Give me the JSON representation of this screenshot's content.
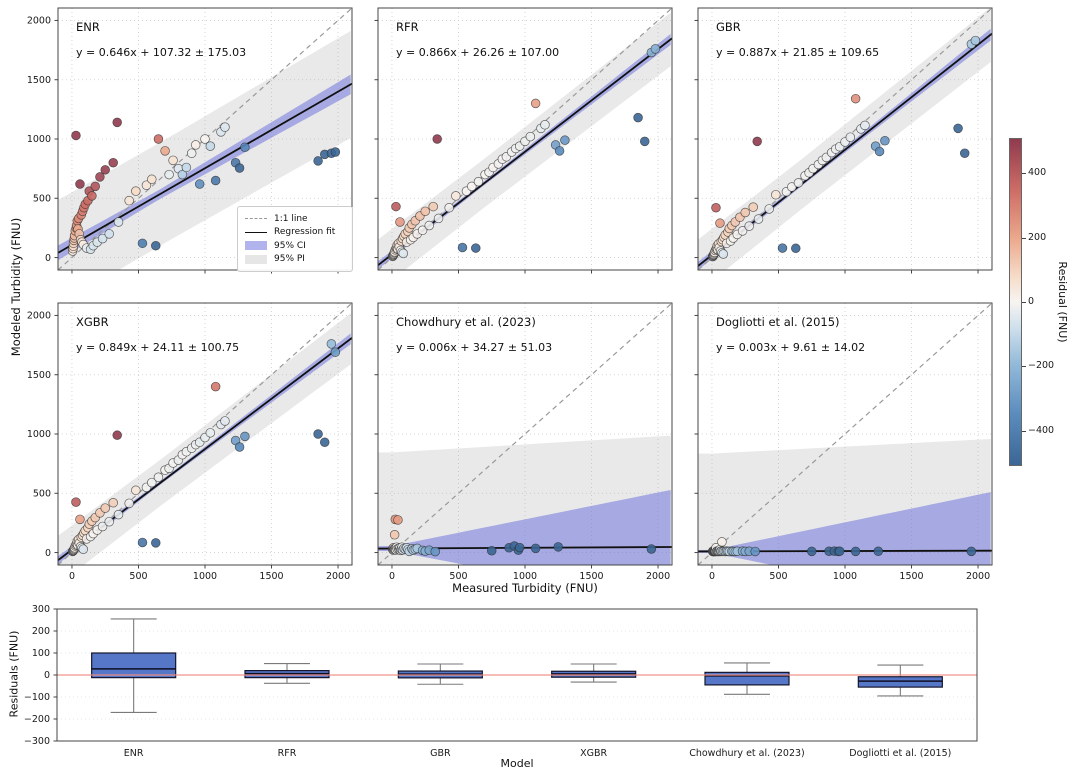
{
  "colors": {
    "background": "#ffffff",
    "spine": "#444444",
    "grid": "#cdcdcd",
    "tick_label": "#1a1a1a",
    "identity_line": "#999999",
    "regression_line": "#111111",
    "ci_fill": "#6f74dd",
    "pi_fill": "#999999",
    "marker_edge": "#2f2f2f",
    "box_fill": "#4d6fc4",
    "box_edge": "#15152d",
    "median_line": "#0f0f23",
    "whisker": "#7a7a7a",
    "zero_line": "#f08e86"
  },
  "chart_data": {
    "scatter_grid": {
      "type": "scatter",
      "x_label": "Measured Turbidity (FNU)",
      "y_label": "Modeled Turbidity (FNU)",
      "x_ticks": [
        0,
        500,
        1000,
        1500,
        2000
      ],
      "y_ticks": [
        0,
        500,
        1000,
        1500,
        2000
      ],
      "axis_range": [
        -105,
        2105
      ],
      "legend": {
        "items": [
          {
            "label": "1:1 line",
            "type": "dashed-line"
          },
          {
            "label": "Regression fit",
            "type": "solid-line"
          },
          {
            "label": "95% CI",
            "type": "ci-patch"
          },
          {
            "label": "95% PI",
            "type": "pi-patch"
          }
        ]
      },
      "colorbar": {
        "label": "Residual (FNU)",
        "ticks": [
          400,
          200,
          0,
          -200,
          -400
        ],
        "vmin": -510,
        "vmax": 510,
        "stops": [
          [
            -510,
            "#3b6695"
          ],
          [
            -350,
            "#5b8cbe"
          ],
          [
            -200,
            "#90b8d8"
          ],
          [
            -80,
            "#cfe0ec"
          ],
          [
            0,
            "#f7f4f1"
          ],
          [
            80,
            "#f6dcc8"
          ],
          [
            200,
            "#eba88c"
          ],
          [
            350,
            "#cd6d66"
          ],
          [
            510,
            "#903a4e"
          ]
        ]
      },
      "panels": [
        {
          "key": "enr",
          "name": "ENR",
          "equation": "y = 0.646x + 107.32 ± 175.03",
          "slope": 0.646,
          "intercept": 107.32,
          "ci": {
            "mode": "flare",
            "base": 40,
            "k": 0.03,
            "center": 650
          },
          "pi": {
            "mode": "flare",
            "base": 435,
            "k": 0.012,
            "center": 700
          }
        },
        {
          "key": "rfr",
          "name": "RFR",
          "equation": "y = 0.866x + 26.26 ± 107.00",
          "slope": 0.866,
          "intercept": 26.26,
          "ci": {
            "mode": "flare",
            "base": 16,
            "k": 0.022,
            "center": 700
          },
          "pi": {
            "mode": "flare",
            "base": 205,
            "k": 0.015,
            "center": 700
          }
        },
        {
          "key": "gbr",
          "name": "GBR",
          "equation": "y = 0.887x + 21.85 ± 109.65",
          "slope": 0.887,
          "intercept": 21.85,
          "ci": {
            "mode": "flare",
            "base": 16,
            "k": 0.024,
            "center": 700
          },
          "pi": {
            "mode": "flare",
            "base": 210,
            "k": 0.015,
            "center": 700
          }
        },
        {
          "key": "xgbr",
          "name": "XGBR",
          "equation": "y = 0.849x + 24.11 ± 100.75",
          "slope": 0.849,
          "intercept": 24.11,
          "ci": {
            "mode": "flare",
            "base": 15,
            "k": 0.022,
            "center": 700
          },
          "pi": {
            "mode": "flare",
            "base": 195,
            "k": 0.015,
            "center": 700
          }
        },
        {
          "key": "chow",
          "name": "Chowdhury et al. (2023)",
          "equation": "y = 0.006x + 34.27 ± 51.03",
          "slope": 0.006,
          "intercept": 34.27,
          "ci": {
            "mode": "wedge",
            "base": 20,
            "k": 0.22
          },
          "pi": {
            "mode": "wedge",
            "base": 810,
            "k": 0.062
          }
        },
        {
          "key": "dog",
          "name": "Dogliotti et al. (2015)",
          "equation": "y = 0.003x + 9.61 ± 14.02",
          "slope": 0.003,
          "intercept": 9.61,
          "ci": {
            "mode": "wedge",
            "base": 12,
            "k": 0.23
          },
          "pi": {
            "mode": "wedge",
            "base": 825,
            "k": 0.056
          }
        }
      ],
      "ml_points_columns": [
        "measured",
        "enr",
        "rfr",
        "gbr",
        "xgbr"
      ],
      "ml_points": [
        [
          5,
          55,
          10,
          8,
          10
        ],
        [
          8,
          75,
          15,
          12,
          14
        ],
        [
          10,
          95,
          20,
          18,
          16
        ],
        [
          12,
          120,
          26,
          22,
          20
        ],
        [
          15,
          145,
          32,
          28,
          26
        ],
        [
          18,
          165,
          40,
          36,
          33
        ],
        [
          20,
          185,
          48,
          44,
          40
        ],
        [
          25,
          225,
          65,
          60,
          55
        ],
        [
          30,
          1030,
          430,
          420,
          425
        ],
        [
          32,
          250,
          75,
          70,
          64
        ],
        [
          35,
          270,
          85,
          80,
          75
        ],
        [
          40,
          310,
          105,
          100,
          95
        ],
        [
          45,
          240,
          70,
          65,
          60
        ],
        [
          50,
          330,
          120,
          115,
          110
        ],
        [
          55,
          200,
          90,
          85,
          80
        ],
        [
          60,
          620,
          300,
          290,
          280
        ],
        [
          65,
          150,
          60,
          55,
          50
        ],
        [
          70,
          360,
          140,
          135,
          130
        ],
        [
          75,
          130,
          45,
          40,
          38
        ],
        [
          80,
          390,
          160,
          150,
          145
        ],
        [
          85,
          110,
          35,
          30,
          28
        ],
        [
          90,
          420,
          180,
          170,
          165
        ],
        [
          100,
          450,
          200,
          190,
          185
        ],
        [
          110,
          80,
          130,
          120,
          115
        ],
        [
          120,
          480,
          220,
          215,
          210
        ],
        [
          130,
          560,
          250,
          245,
          240
        ],
        [
          140,
          70,
          150,
          140,
          135
        ],
        [
          150,
          520,
          280,
          270,
          265
        ],
        [
          160,
          100,
          170,
          165,
          160
        ],
        [
          175,
          600,
          310,
          300,
          295
        ],
        [
          190,
          130,
          200,
          195,
          190
        ],
        [
          210,
          680,
          350,
          340,
          335
        ],
        [
          230,
          160,
          230,
          225,
          220
        ],
        [
          250,
          740,
          390,
          380,
          375
        ],
        [
          280,
          200,
          270,
          265,
          260
        ],
        [
          310,
          800,
          430,
          425,
          420
        ],
        [
          340,
          1140,
          1000,
          980,
          990
        ],
        [
          350,
          300,
          330,
          325,
          320
        ],
        [
          430,
          480,
          420,
          410,
          415
        ],
        [
          480,
          560,
          520,
          530,
          525
        ],
        [
          530,
          120,
          85,
          80,
          85
        ],
        [
          560,
          610,
          560,
          555,
          550
        ],
        [
          600,
          660,
          600,
          595,
          590
        ],
        [
          630,
          100,
          80,
          78,
          82
        ],
        [
          650,
          1000,
          640,
          630,
          635
        ],
        [
          700,
          900,
          700,
          690,
          695
        ],
        [
          730,
          700,
          720,
          715,
          710
        ],
        [
          760,
          820,
          760,
          750,
          755
        ],
        [
          800,
          750,
          790,
          785,
          780
        ],
        [
          830,
          700,
          830,
          820,
          825
        ],
        [
          860,
          760,
          850,
          845,
          850
        ],
        [
          900,
          880,
          890,
          885,
          880
        ],
        [
          930,
          950,
          920,
          915,
          910
        ],
        [
          960,
          620,
          940,
          935,
          930
        ],
        [
          1000,
          1000,
          980,
          975,
          970
        ],
        [
          1040,
          940,
          1020,
          1015,
          1010
        ],
        [
          1080,
          650,
          1300,
          1340,
          1400
        ],
        [
          1120,
          1060,
          1090,
          1085,
          1080
        ],
        [
          1150,
          1100,
          1120,
          1115,
          1110
        ],
        [
          1230,
          800,
          950,
          940,
          945
        ],
        [
          1260,
          755,
          900,
          895,
          890
        ],
        [
          1300,
          930,
          990,
          985,
          980
        ],
        [
          1850,
          815,
          1180,
          1090,
          1000
        ],
        [
          1900,
          870,
          980,
          880,
          930
        ],
        [
          1950,
          880,
          1730,
          1800,
          1760
        ],
        [
          1980,
          890,
          1760,
          1830,
          1690
        ]
      ],
      "chow_points": [
        [
          5,
          28
        ],
        [
          8,
          35
        ],
        [
          10,
          20
        ],
        [
          12,
          40
        ],
        [
          15,
          25
        ],
        [
          18,
          32
        ],
        [
          20,
          150
        ],
        [
          22,
          28
        ],
        [
          25,
          280
        ],
        [
          28,
          38
        ],
        [
          30,
          22
        ],
        [
          35,
          45
        ],
        [
          40,
          30
        ],
        [
          45,
          275
        ],
        [
          50,
          35
        ],
        [
          55,
          25
        ],
        [
          60,
          40
        ],
        [
          65,
          18
        ],
        [
          70,
          30
        ],
        [
          75,
          45
        ],
        [
          80,
          22
        ],
        [
          90,
          35
        ],
        [
          100,
          28
        ],
        [
          110,
          40
        ],
        [
          120,
          25
        ],
        [
          130,
          10
        ],
        [
          150,
          32
        ],
        [
          160,
          20
        ],
        [
          175,
          28
        ],
        [
          190,
          35
        ],
        [
          230,
          18
        ],
        [
          250,
          12
        ],
        [
          280,
          20
        ],
        [
          325,
          8
        ],
        [
          750,
          15
        ],
        [
          880,
          40
        ],
        [
          920,
          55
        ],
        [
          950,
          20
        ],
        [
          960,
          42
        ],
        [
          1080,
          35
        ],
        [
          1250,
          48
        ],
        [
          1950,
          30
        ]
      ],
      "dog_points": [
        [
          5,
          10
        ],
        [
          8,
          12
        ],
        [
          10,
          8
        ],
        [
          12,
          14
        ],
        [
          15,
          9
        ],
        [
          18,
          11
        ],
        [
          20,
          10
        ],
        [
          22,
          13
        ],
        [
          25,
          9
        ],
        [
          28,
          12
        ],
        [
          30,
          40
        ],
        [
          35,
          10
        ],
        [
          40,
          12
        ],
        [
          45,
          9
        ],
        [
          50,
          11
        ],
        [
          55,
          10
        ],
        [
          60,
          25
        ],
        [
          65,
          10
        ],
        [
          70,
          12
        ],
        [
          75,
          90
        ],
        [
          80,
          10
        ],
        [
          90,
          11
        ],
        [
          100,
          9
        ],
        [
          110,
          12
        ],
        [
          120,
          10
        ],
        [
          130,
          9
        ],
        [
          150,
          11
        ],
        [
          160,
          10
        ],
        [
          175,
          9
        ],
        [
          190,
          11
        ],
        [
          230,
          12
        ],
        [
          250,
          10
        ],
        [
          280,
          11
        ],
        [
          325,
          9
        ],
        [
          750,
          10
        ],
        [
          880,
          11
        ],
        [
          920,
          12
        ],
        [
          950,
          10
        ],
        [
          960,
          11
        ],
        [
          1080,
          10
        ],
        [
          1250,
          11
        ],
        [
          1950,
          10
        ]
      ]
    },
    "boxplot": {
      "type": "box",
      "x_label": "Model",
      "y_label": "Residuals (FNU)",
      "y_ticks": [
        300,
        200,
        100,
        0,
        -100,
        -200,
        -300
      ],
      "ylim": [
        -300,
        300
      ],
      "zero_line": 0,
      "boxes": [
        {
          "label": "ENR",
          "whisker_low": -170,
          "q1": -12,
          "median": 28,
          "q3": 100,
          "whisker_high": 255
        },
        {
          "label": "RFR",
          "whisker_low": -38,
          "q1": -12,
          "median": 6,
          "q3": 20,
          "whisker_high": 52
        },
        {
          "label": "GBR",
          "whisker_low": -42,
          "q1": -13,
          "median": 4,
          "q3": 18,
          "whisker_high": 50
        },
        {
          "label": "XGBR",
          "whisker_low": -32,
          "q1": -10,
          "median": 5,
          "q3": 17,
          "whisker_high": 50
        },
        {
          "label": "Chowdhury et al. (2023)",
          "whisker_low": -88,
          "q1": -45,
          "median": -4,
          "q3": 12,
          "whisker_high": 55
        },
        {
          "label": "Dogliotti et al. (2015)",
          "whisker_low": -95,
          "q1": -55,
          "median": -28,
          "q3": -8,
          "whisker_high": 45
        }
      ]
    }
  }
}
